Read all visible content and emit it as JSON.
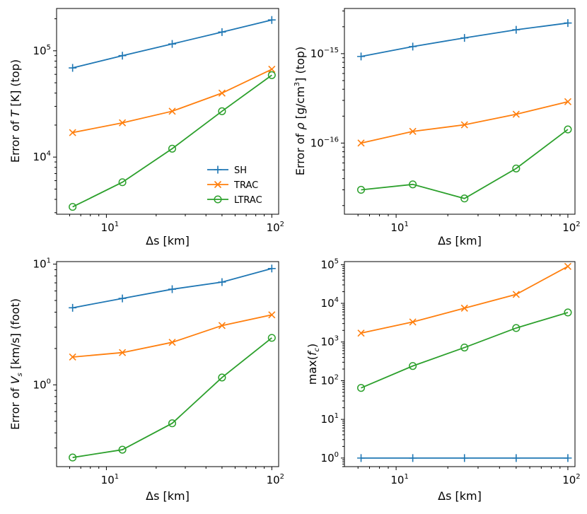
{
  "colors": {
    "SH": "#1f77b4",
    "TRAC": "#ff7f0e",
    "LTRAC": "#2ca02c"
  },
  "chart_data": [
    {
      "type": "line",
      "id": "temperature",
      "xscale": "log",
      "yscale": "log",
      "xlim": [
        5,
        110
      ],
      "ylim": [
        2900,
        250000
      ],
      "xlabel": "Δs [km]",
      "ylabel_parts": [
        "Error of ",
        "T",
        " [K] (top)"
      ],
      "xticks": [
        {
          "v": 10,
          "base": "10",
          "exp": "1"
        },
        {
          "v": 100,
          "base": "10",
          "exp": "2"
        }
      ],
      "yticks": [
        {
          "v": 10000,
          "base": "10",
          "exp": "4"
        },
        {
          "v": 100000,
          "base": "10",
          "exp": "5"
        }
      ],
      "legend": {
        "position": "lower-right",
        "entries": [
          "SH",
          "TRAC",
          "LTRAC"
        ]
      },
      "x": [
        6.25,
        12.5,
        25,
        50,
        100
      ],
      "series": [
        {
          "name": "SH",
          "marker": "plus",
          "values": [
            69000,
            90000,
            116000,
            150000,
            195000
          ]
        },
        {
          "name": "TRAC",
          "marker": "x",
          "values": [
            17000,
            21000,
            27000,
            40000,
            67000
          ]
        },
        {
          "name": "LTRAC",
          "marker": "circle",
          "values": [
            3400,
            5800,
            12000,
            27000,
            59000
          ]
        }
      ]
    },
    {
      "type": "line",
      "id": "density",
      "xscale": "log",
      "yscale": "log",
      "xlim": [
        5,
        110
      ],
      "ylim": [
        1.6e-17,
        3.2e-15
      ],
      "xlabel": "Δs [km]",
      "ylabel_parts": [
        "Error of ",
        "ρ",
        " [g/cm",
        "3",
        "] (top)"
      ],
      "xticks": [
        {
          "v": 10,
          "base": "10",
          "exp": "1"
        },
        {
          "v": 100,
          "base": "10",
          "exp": "2"
        }
      ],
      "yticks": [
        {
          "v": 1e-16,
          "base": "10",
          "exp": "−16"
        },
        {
          "v": 1e-15,
          "base": "10",
          "exp": "−15"
        }
      ],
      "x": [
        6.25,
        12.5,
        25,
        50,
        100
      ],
      "series": [
        {
          "name": "SH",
          "marker": "plus",
          "values": [
            9.3e-16,
            1.2e-15,
            1.5e-15,
            1.85e-15,
            2.2e-15
          ]
        },
        {
          "name": "TRAC",
          "marker": "x",
          "values": [
            1e-16,
            1.35e-16,
            1.6e-16,
            2.1e-16,
            2.9e-16
          ]
        },
        {
          "name": "LTRAC",
          "marker": "circle",
          "values": [
            3e-17,
            3.45e-17,
            2.4e-17,
            5.2e-17,
            1.42e-16
          ]
        }
      ]
    },
    {
      "type": "line",
      "id": "velocity",
      "xscale": "log",
      "yscale": "log",
      "xlim": [
        5,
        110
      ],
      "ylim": [
        0.21,
        10.5
      ],
      "xlabel": "Δs [km]",
      "ylabel_parts": [
        "Error of ",
        "V",
        "s",
        " [km/s] (foot)"
      ],
      "xticks": [
        {
          "v": 10,
          "base": "10",
          "exp": "1"
        },
        {
          "v": 100,
          "base": "10",
          "exp": "2"
        }
      ],
      "yticks": [
        {
          "v": 1,
          "base": "10",
          "exp": "0"
        },
        {
          "v": 10,
          "base": "10",
          "exp": "1"
        }
      ],
      "x": [
        6.25,
        12.5,
        25,
        50,
        100
      ],
      "series": [
        {
          "name": "SH",
          "marker": "plus",
          "values": [
            4.35,
            5.2,
            6.2,
            7.1,
            9.2
          ]
        },
        {
          "name": "TRAC",
          "marker": "x",
          "values": [
            1.7,
            1.85,
            2.25,
            3.1,
            3.8
          ]
        },
        {
          "name": "LTRAC",
          "marker": "circle",
          "values": [
            0.25,
            0.29,
            0.48,
            1.15,
            2.45
          ]
        }
      ]
    },
    {
      "type": "line",
      "id": "max-fc",
      "xscale": "log",
      "yscale": "log",
      "xlim": [
        5,
        110
      ],
      "ylim": [
        0.6,
        120000
      ],
      "xlabel": "Δs [km]",
      "ylabel_parts": [
        "max(",
        "f",
        "c",
        ")"
      ],
      "xticks": [
        {
          "v": 10,
          "base": "10",
          "exp": "1"
        },
        {
          "v": 100,
          "base": "10",
          "exp": "2"
        }
      ],
      "yticks": [
        {
          "v": 1,
          "base": "10",
          "exp": "0"
        },
        {
          "v": 10,
          "base": "10",
          "exp": "1"
        },
        {
          "v": 100,
          "base": "10",
          "exp": "2"
        },
        {
          "v": 1000,
          "base": "10",
          "exp": "3"
        },
        {
          "v": 10000,
          "base": "10",
          "exp": "4"
        },
        {
          "v": 100000,
          "base": "10",
          "exp": "5"
        }
      ],
      "x": [
        6.25,
        12.5,
        25,
        50,
        100
      ],
      "series": [
        {
          "name": "SH",
          "marker": "plus",
          "values": [
            1,
            1,
            1,
            1,
            1
          ]
        },
        {
          "name": "TRAC",
          "marker": "x",
          "values": [
            1700,
            3300,
            7500,
            17000,
            90000
          ]
        },
        {
          "name": "LTRAC",
          "marker": "circle",
          "values": [
            65,
            240,
            720,
            2300,
            5800
          ]
        }
      ]
    }
  ]
}
